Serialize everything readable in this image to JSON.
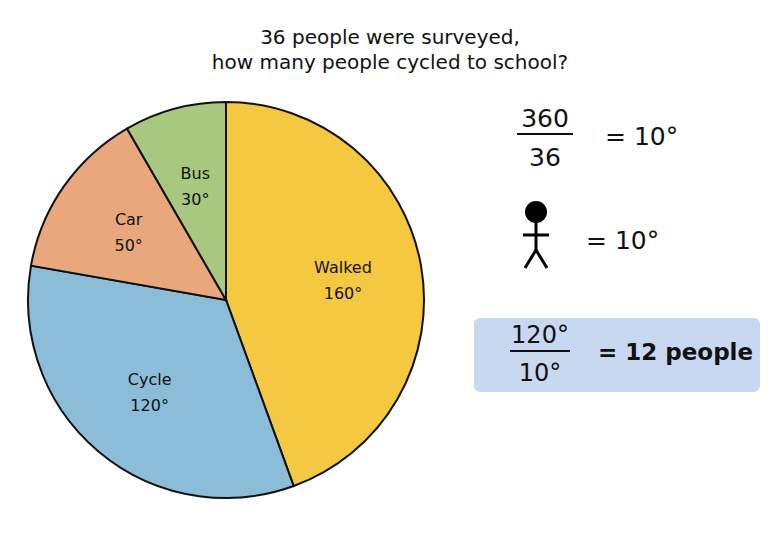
{
  "chart_data": {
    "type": "pie",
    "title": "36 people were surveyed,",
    "subtitle": "how many people cycled to school?",
    "categories": [
      "Walked",
      "Cycle",
      "Car",
      "Bus"
    ],
    "values": [
      160,
      120,
      50,
      30
    ],
    "value_labels": [
      "160°",
      "120°",
      "50°",
      "30°"
    ],
    "colors": [
      "#F5C842",
      "#8BBDD9",
      "#E8A87C",
      "#A8C880"
    ],
    "data_labels": true,
    "annotations": [
      "360",
      "36",
      "= 10°",
      "= 10°",
      "120°",
      "10°",
      "= 12 people"
    ]
  }
}
